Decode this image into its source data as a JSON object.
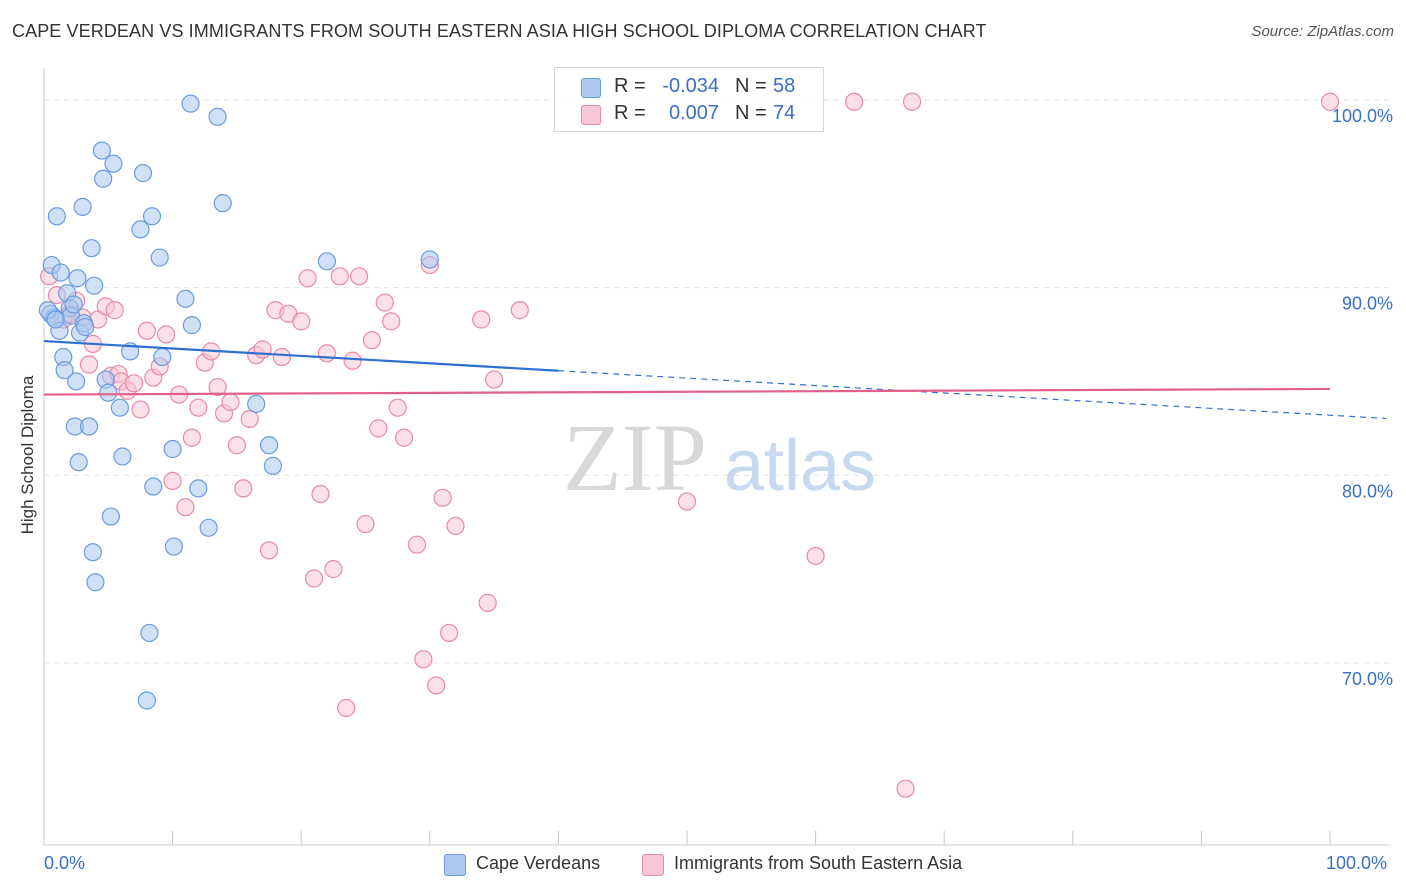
{
  "title": "CAPE VERDEAN VS IMMIGRANTS FROM SOUTH EASTERN ASIA HIGH SCHOOL DIPLOMA CORRELATION CHART",
  "source": "Source: ZipAtlas.com",
  "watermark": {
    "zip": "ZIP",
    "atlas": "atlas"
  },
  "legend": {
    "rows": [
      {
        "r_label": "R =",
        "r_value": "-0.034",
        "n_label": "N =",
        "n_value": "58",
        "color": "#aac8f0",
        "border": "#6b9be0"
      },
      {
        "r_label": "R =",
        "r_value": "0.007",
        "n_label": "N =",
        "n_value": "74",
        "color": "#f8c6d6",
        "border": "#e88aa8"
      }
    ]
  },
  "bottom_legend": {
    "series1": "Cape Verdeans",
    "series2": "Immigrants from South Eastern Asia"
  },
  "x_axis": {
    "min_label": "0.0%",
    "max_label": "100.0%"
  },
  "chart_data": {
    "type": "scatter",
    "title": "CAPE VERDEAN VS IMMIGRANTS FROM SOUTH EASTERN ASIA HIGH SCHOOL DIPLOMA CORRELATION CHART",
    "xlabel": "",
    "ylabel": "High School Diploma",
    "xlim": [
      0,
      100
    ],
    "ylim": [
      60.3,
      101.7
    ],
    "y_ticks": [
      {
        "value": 100,
        "label": "100.0%"
      },
      {
        "value": 90,
        "label": "90.0%"
      },
      {
        "value": 80,
        "label": "80.0%"
      },
      {
        "value": 70,
        "label": "70.0%"
      }
    ],
    "series": [
      {
        "name": "Cape Verdeans",
        "color": "#6b9be0",
        "fill": "#aac8f0",
        "points": [
          [
            0.5,
            88.6
          ],
          [
            0.6,
            91.2
          ],
          [
            1.0,
            93.8
          ],
          [
            0.8,
            88.4
          ],
          [
            1.2,
            87.7
          ],
          [
            1.5,
            86.3
          ],
          [
            1.6,
            85.6
          ],
          [
            1.8,
            89.7
          ],
          [
            2.0,
            88.9
          ],
          [
            2.1,
            88.5
          ],
          [
            2.3,
            89.1
          ],
          [
            2.4,
            82.6
          ],
          [
            2.5,
            85.0
          ],
          [
            2.6,
            90.5
          ],
          [
            2.7,
            80.7
          ],
          [
            2.8,
            87.6
          ],
          [
            3.0,
            94.3
          ],
          [
            3.1,
            88.1
          ],
          [
            3.2,
            87.9
          ],
          [
            3.5,
            82.6
          ],
          [
            3.7,
            92.1
          ],
          [
            3.9,
            90.1
          ],
          [
            4.0,
            74.3
          ],
          [
            3.8,
            75.9
          ],
          [
            4.5,
            97.3
          ],
          [
            4.6,
            95.8
          ],
          [
            4.8,
            85.1
          ],
          [
            5.0,
            84.4
          ],
          [
            5.2,
            77.8
          ],
          [
            5.4,
            96.6
          ],
          [
            5.9,
            83.6
          ],
          [
            6.1,
            81.0
          ],
          [
            6.7,
            86.6
          ],
          [
            7.5,
            93.1
          ],
          [
            7.7,
            96.1
          ],
          [
            8.0,
            68.0
          ],
          [
            8.2,
            71.6
          ],
          [
            8.4,
            93.8
          ],
          [
            8.5,
            79.4
          ],
          [
            9.0,
            91.6
          ],
          [
            9.2,
            86.3
          ],
          [
            10.0,
            81.4
          ],
          [
            10.1,
            76.2
          ],
          [
            11.0,
            89.4
          ],
          [
            11.5,
            88.0
          ],
          [
            12.0,
            79.3
          ],
          [
            12.8,
            77.2
          ],
          [
            11.4,
            99.8
          ],
          [
            13.5,
            99.1
          ],
          [
            13.9,
            94.5
          ],
          [
            16.5,
            83.8
          ],
          [
            17.5,
            81.6
          ],
          [
            17.8,
            80.5
          ],
          [
            22.0,
            91.4
          ],
          [
            30.0,
            91.5
          ],
          [
            0.3,
            88.8
          ],
          [
            0.9,
            88.3
          ],
          [
            1.3,
            90.8
          ]
        ]
      },
      {
        "name": "Immigrants from South Eastern Asia",
        "color": "#e88aa8",
        "fill": "#f8c6d6",
        "points": [
          [
            0.4,
            90.6
          ],
          [
            1.0,
            89.6
          ],
          [
            1.5,
            88.3
          ],
          [
            2.0,
            88.6
          ],
          [
            2.5,
            89.3
          ],
          [
            3.0,
            88.4
          ],
          [
            3.5,
            85.9
          ],
          [
            3.8,
            87.0
          ],
          [
            4.2,
            88.3
          ],
          [
            4.8,
            89.0
          ],
          [
            5.2,
            85.3
          ],
          [
            5.5,
            88.8
          ],
          [
            5.8,
            85.4
          ],
          [
            6.0,
            85.0
          ],
          [
            6.5,
            84.5
          ],
          [
            7.0,
            84.9
          ],
          [
            7.5,
            83.5
          ],
          [
            8.0,
            87.7
          ],
          [
            8.5,
            85.2
          ],
          [
            9.0,
            85.8
          ],
          [
            9.5,
            87.5
          ],
          [
            10.0,
            79.7
          ],
          [
            10.5,
            84.3
          ],
          [
            11.0,
            78.3
          ],
          [
            11.5,
            82.0
          ],
          [
            12.0,
            83.6
          ],
          [
            12.5,
            86.0
          ],
          [
            13.0,
            86.6
          ],
          [
            13.5,
            84.7
          ],
          [
            14.0,
            83.3
          ],
          [
            14.5,
            83.9
          ],
          [
            15.0,
            81.6
          ],
          [
            15.5,
            79.3
          ],
          [
            16.0,
            83.0
          ],
          [
            16.5,
            86.4
          ],
          [
            17.0,
            86.7
          ],
          [
            17.5,
            76.0
          ],
          [
            18.0,
            88.8
          ],
          [
            18.5,
            86.3
          ],
          [
            19.0,
            88.6
          ],
          [
            20.0,
            88.2
          ],
          [
            20.5,
            90.5
          ],
          [
            21.0,
            74.5
          ],
          [
            21.5,
            79.0
          ],
          [
            22.0,
            86.5
          ],
          [
            22.5,
            75.0
          ],
          [
            23.0,
            90.6
          ],
          [
            23.5,
            67.6
          ],
          [
            24.0,
            86.1
          ],
          [
            24.5,
            90.6
          ],
          [
            25.0,
            77.4
          ],
          [
            25.5,
            87.2
          ],
          [
            26.0,
            82.5
          ],
          [
            26.5,
            89.2
          ],
          [
            27.0,
            88.2
          ],
          [
            27.5,
            83.6
          ],
          [
            28.0,
            82.0
          ],
          [
            29.0,
            76.3
          ],
          [
            29.5,
            70.2
          ],
          [
            30.0,
            91.2
          ],
          [
            30.5,
            68.8
          ],
          [
            31.0,
            78.8
          ],
          [
            31.5,
            71.6
          ],
          [
            32.0,
            77.3
          ],
          [
            34.0,
            88.3
          ],
          [
            34.5,
            73.2
          ],
          [
            35.0,
            85.1
          ],
          [
            37.0,
            88.8
          ],
          [
            50.0,
            78.6
          ],
          [
            60.0,
            75.7
          ],
          [
            63.0,
            99.9
          ],
          [
            67.0,
            63.3
          ],
          [
            67.5,
            99.9
          ],
          [
            100.0,
            99.9
          ]
        ]
      }
    ],
    "trend_lines": [
      {
        "series": "Cape Verdeans",
        "color": "#2f6fd0",
        "x0": 0,
        "y0": 87.15,
        "x1": 100,
        "y1": 83.2,
        "solid_until": 40
      },
      {
        "series": "Immigrants from South Eastern Asia",
        "color": "#e0608a",
        "x0": 0,
        "y0": 84.3,
        "x1": 100,
        "y1": 84.6
      }
    ]
  }
}
